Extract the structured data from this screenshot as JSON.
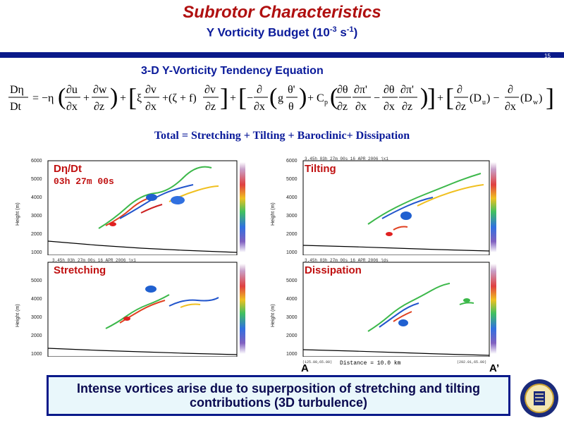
{
  "slide": {
    "title": "Subrotor Characteristics",
    "subtitle_prefix": "Y Vorticity Budget (10",
    "subtitle_exp1": "-3",
    "subtitle_mid": " s",
    "subtitle_exp2": "-1",
    "subtitle_suffix": ")",
    "page_number": "15",
    "equation_title": "3-D Y-Vorticity Tendency Equation",
    "total_line": "Total = Stretching + Tilting + Baroclinic+ Dissipation",
    "callout": "Intense vortices arise due to superposition of stretching and tilting contributions (3D turbulence)"
  },
  "panels": [
    {
      "label": "Dη/Dt",
      "time": "03h 27m 00s",
      "header": "3.45h   03h 27m 00s   16 APR 2006      jx1"
    },
    {
      "label": "Tilting",
      "header": "3.45h   03h 27m 00s   16 APR 2006      jx1"
    },
    {
      "label": "Stretching",
      "header": "3.45h   03h 27m 00s   16 APR 2006      jx1"
    },
    {
      "label": "Dissipation",
      "header": "3.45h   03h 27m 00s   16 APR 2006      jds"
    }
  ],
  "axis": {
    "y_label": "Height (m)",
    "y_ticks": [
      "6000",
      "5000",
      "4000",
      "3000",
      "2000",
      "1000"
    ]
  },
  "footer": {
    "start_marker": "A",
    "end_marker": "A’",
    "distance": "Distance =    10.0 km",
    "coord_left": "(125.00,65.00)",
    "coord_right": "(292.01,65.00)"
  },
  "colors": {
    "title": "#b01010",
    "blue_text": "#0a1a9a",
    "panel_label": "#c01010",
    "rule": "#0a1a8a",
    "callout_bg": "#e9f7fb"
  }
}
